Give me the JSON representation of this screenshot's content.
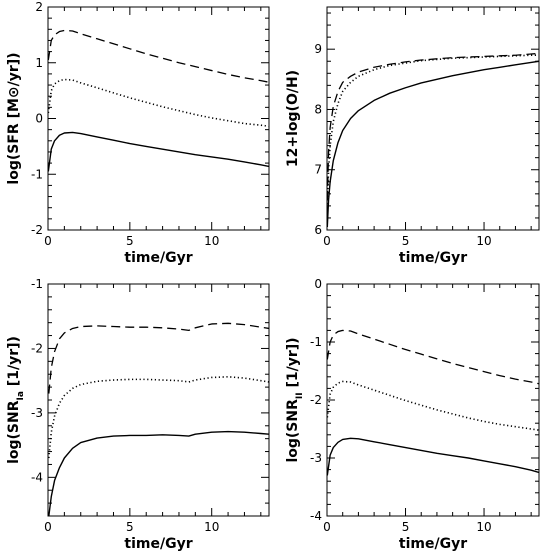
{
  "chart_data": [
    {
      "type": "line",
      "xlabel": "time/Gyr",
      "ylabel": "log(SFR [M⊙/yr])",
      "xlim": [
        0,
        13.5
      ],
      "ylim": [
        -2,
        2
      ],
      "xticks": [
        0,
        5,
        10
      ],
      "yticks": [
        -2,
        -1,
        0,
        1,
        2
      ],
      "x": [
        0.02,
        0.2,
        0.4,
        0.7,
        1.0,
        1.5,
        2.0,
        3.0,
        4.0,
        5.0,
        6.0,
        7.0,
        8.0,
        9.0,
        10.0,
        11.0,
        12.0,
        13.0,
        13.5
      ],
      "series": [
        {
          "linestyle": "dashed",
          "values": [
            1.05,
            1.4,
            1.5,
            1.56,
            1.58,
            1.57,
            1.52,
            1.43,
            1.34,
            1.25,
            1.16,
            1.08,
            1.0,
            0.93,
            0.86,
            0.79,
            0.73,
            0.68,
            0.65
          ]
        },
        {
          "linestyle": "dotted",
          "values": [
            0.1,
            0.5,
            0.62,
            0.68,
            0.7,
            0.69,
            0.64,
            0.55,
            0.46,
            0.37,
            0.29,
            0.21,
            0.14,
            0.07,
            0.01,
            -0.04,
            -0.09,
            -0.12,
            -0.14
          ]
        },
        {
          "linestyle": "solid",
          "values": [
            -0.95,
            -0.55,
            -0.4,
            -0.3,
            -0.26,
            -0.25,
            -0.27,
            -0.33,
            -0.39,
            -0.45,
            -0.5,
            -0.55,
            -0.6,
            -0.65,
            -0.69,
            -0.73,
            -0.78,
            -0.83,
            -0.86
          ]
        }
      ]
    },
    {
      "type": "line",
      "xlabel": "time/Gyr",
      "ylabel": "12+log(O/H)",
      "xlim": [
        0,
        13.5
      ],
      "ylim": [
        6,
        9.7
      ],
      "xticks": [
        0,
        5,
        10
      ],
      "yticks": [
        6,
        7,
        8,
        9
      ],
      "x": [
        0.02,
        0.1,
        0.2,
        0.4,
        0.7,
        1.0,
        1.5,
        2.0,
        3.0,
        4.0,
        5.0,
        6.0,
        7.0,
        8.0,
        9.0,
        10.0,
        11.0,
        12.0,
        13.0,
        13.5
      ],
      "series": [
        {
          "linestyle": "dashed",
          "values": [
            6.5,
            7.3,
            7.7,
            8.05,
            8.3,
            8.45,
            8.55,
            8.62,
            8.7,
            8.75,
            8.79,
            8.82,
            8.84,
            8.86,
            8.87,
            8.88,
            8.89,
            8.9,
            8.92,
            8.93
          ]
        },
        {
          "linestyle": "dotted",
          "values": [
            6.3,
            7.0,
            7.4,
            7.8,
            8.1,
            8.3,
            8.45,
            8.55,
            8.66,
            8.73,
            8.77,
            8.81,
            8.83,
            8.85,
            8.86,
            8.87,
            8.88,
            8.89,
            8.9,
            8.9
          ]
        },
        {
          "linestyle": "solid",
          "values": [
            6.05,
            6.5,
            6.8,
            7.15,
            7.45,
            7.65,
            7.85,
            7.98,
            8.15,
            8.27,
            8.36,
            8.44,
            8.5,
            8.56,
            8.61,
            8.66,
            8.7,
            8.74,
            8.78,
            8.8
          ]
        }
      ]
    },
    {
      "type": "line",
      "xlabel": "time/Gyr",
      "ylabel": "log(SNR_Ia [1/yr])",
      "xlim": [
        0,
        13.5
      ],
      "ylim": [
        -4.6,
        -1
      ],
      "xticks": [
        0,
        5,
        10
      ],
      "yticks": [
        -4,
        -3,
        -2,
        -1
      ],
      "x": [
        0.05,
        0.2,
        0.4,
        0.7,
        1.0,
        1.5,
        2.0,
        3.0,
        4.0,
        5.0,
        6.0,
        7.0,
        8.0,
        8.6,
        9.0,
        10.0,
        11.0,
        12.0,
        13.0,
        13.5
      ],
      "series": [
        {
          "linestyle": "dashed",
          "values": [
            -2.7,
            -2.3,
            -2.05,
            -1.85,
            -1.76,
            -1.69,
            -1.66,
            -1.65,
            -1.66,
            -1.67,
            -1.67,
            -1.68,
            -1.7,
            -1.72,
            -1.68,
            -1.62,
            -1.61,
            -1.63,
            -1.67,
            -1.69
          ]
        },
        {
          "linestyle": "dotted",
          "values": [
            -3.7,
            -3.3,
            -3.05,
            -2.85,
            -2.73,
            -2.62,
            -2.56,
            -2.51,
            -2.49,
            -2.48,
            -2.48,
            -2.49,
            -2.5,
            -2.52,
            -2.49,
            -2.45,
            -2.44,
            -2.46,
            -2.5,
            -2.52
          ]
        },
        {
          "linestyle": "solid",
          "values": [
            -4.6,
            -4.3,
            -4.05,
            -3.85,
            -3.7,
            -3.55,
            -3.46,
            -3.39,
            -3.36,
            -3.35,
            -3.35,
            -3.34,
            -3.35,
            -3.36,
            -3.33,
            -3.3,
            -3.29,
            -3.3,
            -3.32,
            -3.33
          ]
        }
      ]
    },
    {
      "type": "line",
      "xlabel": "time/Gyr",
      "ylabel": "log(SNR_II [1/yr])",
      "xlim": [
        0,
        13.5
      ],
      "ylim": [
        -4,
        0
      ],
      "xticks": [
        0,
        5,
        10
      ],
      "yticks": [
        -4,
        -3,
        -2,
        -1,
        0
      ],
      "x": [
        0.02,
        0.2,
        0.4,
        0.7,
        1.0,
        1.5,
        2.0,
        3.0,
        4.0,
        5.0,
        6.0,
        7.0,
        8.0,
        9.0,
        10.0,
        11.0,
        12.0,
        13.0,
        13.5
      ],
      "series": [
        {
          "linestyle": "dashed",
          "values": [
            -1.3,
            -1.0,
            -0.88,
            -0.82,
            -0.8,
            -0.81,
            -0.86,
            -0.95,
            -1.04,
            -1.13,
            -1.21,
            -1.29,
            -1.37,
            -1.44,
            -1.51,
            -1.58,
            -1.64,
            -1.69,
            -1.72
          ]
        },
        {
          "linestyle": "dotted",
          "values": [
            -2.3,
            -1.9,
            -1.78,
            -1.71,
            -1.68,
            -1.69,
            -1.74,
            -1.83,
            -1.92,
            -2.01,
            -2.09,
            -2.17,
            -2.24,
            -2.31,
            -2.37,
            -2.42,
            -2.46,
            -2.5,
            -2.52
          ]
        },
        {
          "linestyle": "solid",
          "values": [
            -3.3,
            -2.95,
            -2.82,
            -2.73,
            -2.68,
            -2.66,
            -2.67,
            -2.72,
            -2.77,
            -2.82,
            -2.87,
            -2.92,
            -2.96,
            -3.0,
            -3.05,
            -3.1,
            -3.15,
            -3.21,
            -3.25
          ]
        }
      ]
    }
  ]
}
